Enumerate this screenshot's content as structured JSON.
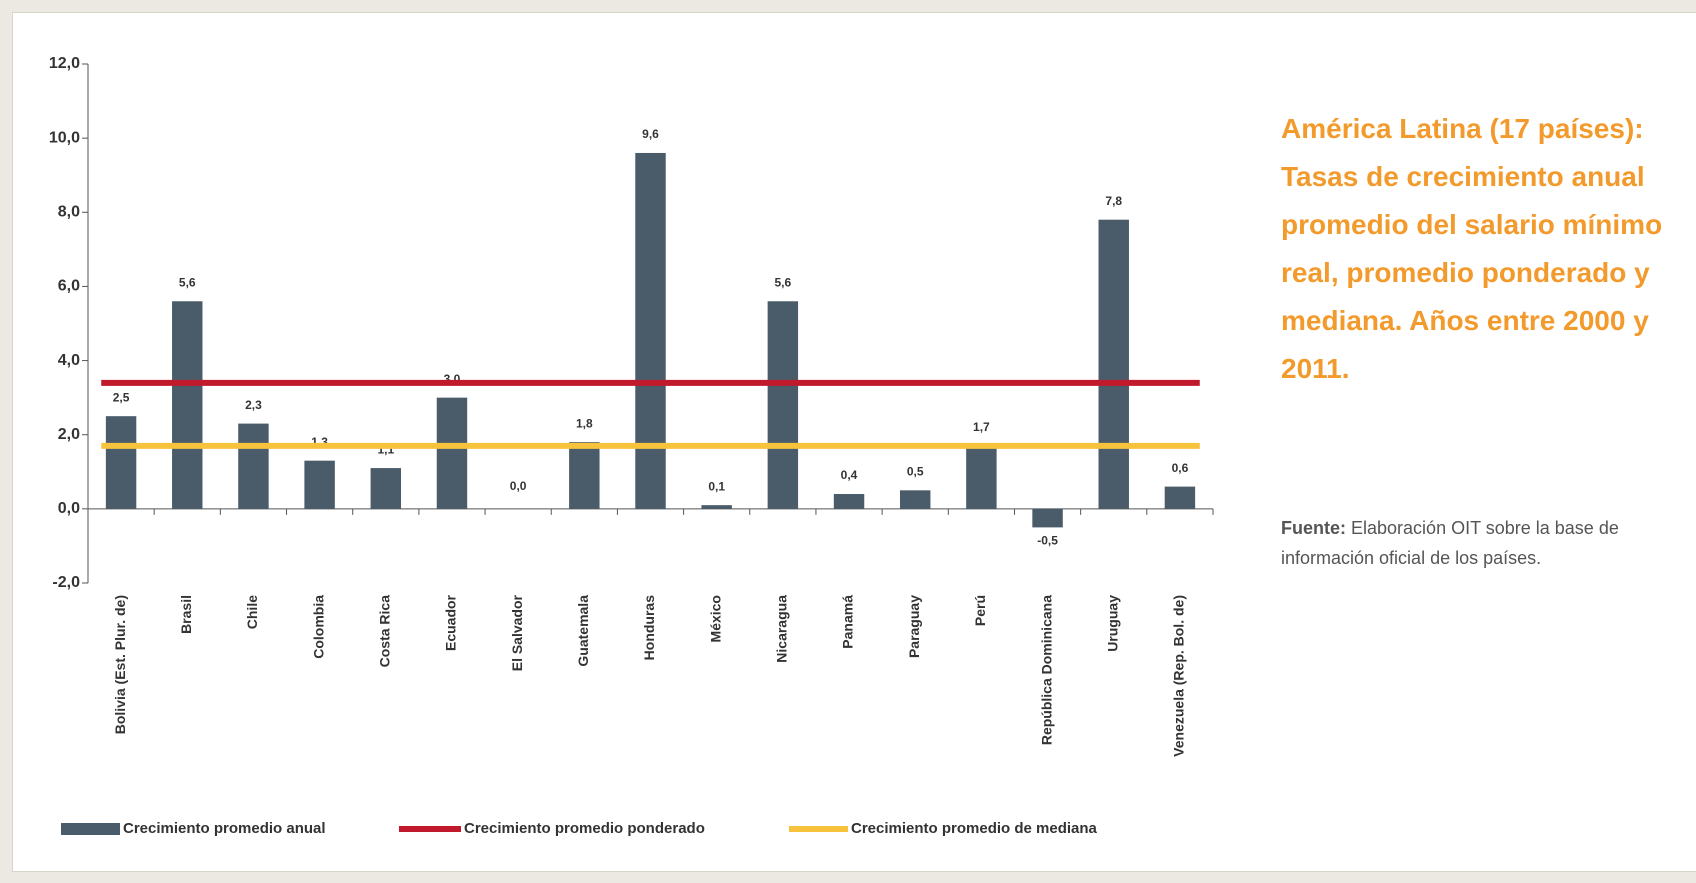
{
  "chart_data": {
    "type": "bar",
    "title": "América Latina (17 países): Tasas de crecimiento anual promedio del salario mínimo real, promedio ponderado y mediana. Años entre 2000 y 2011.",
    "source_label": "Fuente:",
    "source_text": "Elaboración OIT sobre la base de información oficial de los países.",
    "categories": [
      "Bolivia (Est. Plur. de)",
      "Brasil",
      "Chile",
      "Colombia",
      "Costa Rica",
      "Ecuador",
      "El Salvador",
      "Guatemala",
      "Honduras",
      "México",
      "Nicaragua",
      "Panamá",
      "Paraguay",
      "Perú",
      "República Dominicana",
      "Uruguay",
      "Venezuela (Rep. Bol. de)"
    ],
    "series": [
      {
        "name": "Crecimiento promedio anual",
        "color": "#4a5c69",
        "values": [
          2.5,
          5.6,
          2.3,
          1.3,
          1.1,
          3.0,
          0.0,
          1.8,
          9.6,
          0.1,
          5.6,
          0.4,
          0.5,
          1.7,
          -0.5,
          7.8,
          0.6
        ],
        "value_labels": [
          "2,5",
          "5,6",
          "2,3",
          "1,3",
          "1,1",
          "3,0",
          "0,0",
          "1,8",
          "9,6",
          "0,1",
          "5,6",
          "0,4",
          "0,5",
          "1,7",
          "-0,5",
          "7,8",
          "0,6"
        ]
      }
    ],
    "lines": [
      {
        "name": "Crecimiento promedio ponderado",
        "color": "#c01a2c",
        "value": 3.4
      },
      {
        "name": "Crecimiento promedio de mediana",
        "color": "#f7c23c",
        "value": 1.7
      }
    ],
    "ylim": [
      -2,
      12
    ],
    "yticks": [
      {
        "value": -2,
        "label": "-2,0"
      },
      {
        "value": 0,
        "label": "0,0"
      },
      {
        "value": 2,
        "label": "2,0"
      },
      {
        "value": 4,
        "label": "4,0"
      },
      {
        "value": 6,
        "label": "6,0"
      },
      {
        "value": 8,
        "label": "8,0"
      },
      {
        "value": 10,
        "label": "10,0"
      },
      {
        "value": 12,
        "label": "12,0"
      }
    ]
  }
}
